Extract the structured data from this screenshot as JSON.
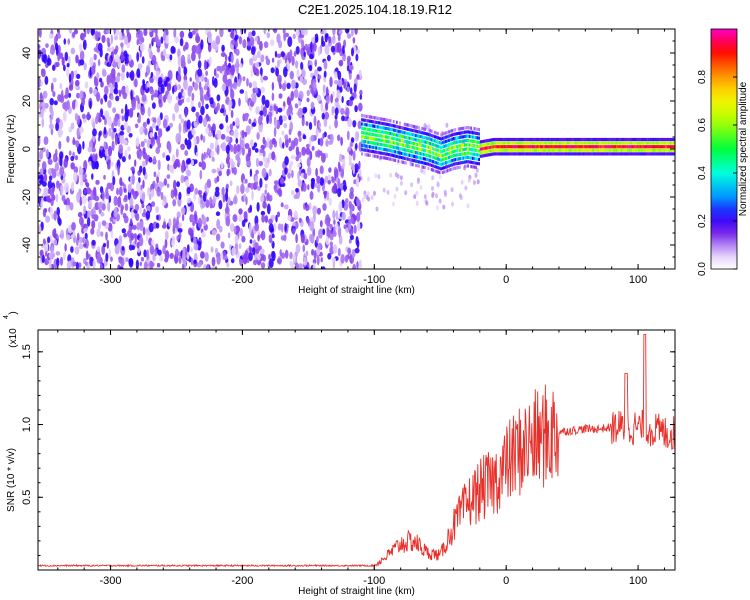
{
  "title": "C2E1.2025.104.18.19.R12",
  "chart_data": [
    {
      "type": "heatmap",
      "xlabel": "Height of straight line (km)",
      "ylabel": "Frequency (Hz)",
      "xlim": [
        -355,
        128
      ],
      "ylim": [
        -50,
        50
      ],
      "xticks": [
        -300,
        -200,
        -100,
        0,
        100
      ],
      "yticks": [
        -40,
        -20,
        0,
        20,
        40
      ],
      "noise_region_x": [
        -355,
        -110
      ],
      "signal_track": {
        "x": [
          -110,
          -90,
          -75,
          -60,
          -50,
          -40,
          -30,
          -20,
          -10,
          0,
          20,
          60,
          100,
          128
        ],
        "frequency": [
          6,
          4,
          2,
          0,
          -2,
          0,
          1,
          0,
          1,
          1,
          1,
          1,
          1,
          1
        ]
      },
      "colorbar": {
        "label": "Normalized spectral amplitude",
        "range": [
          0,
          1
        ],
        "ticks": [
          0.0,
          0.2,
          0.4,
          0.6,
          0.8
        ]
      }
    },
    {
      "type": "line",
      "xlabel": "Height of straight line (km)",
      "ylabel": "SNR (10 * v/v)",
      "multiplier_label": "(x10",
      "multiplier_exp": "4",
      "xlim": [
        -355,
        128
      ],
      "ylim": [
        0,
        1.65
      ],
      "xticks": [
        -300,
        -200,
        -100,
        0,
        100
      ],
      "yticks": [
        0.5,
        1.0,
        1.5
      ],
      "series": [
        {
          "color": "#e8302a",
          "x": [
            -355,
            -100,
            -90,
            -80,
            -70,
            -60,
            -50,
            -40,
            -30,
            -20,
            -10,
            0,
            10,
            20,
            30,
            40,
            50,
            60,
            70,
            80,
            90,
            100,
            110,
            120,
            128
          ],
          "y": [
            0.03,
            0.03,
            0.1,
            0.18,
            0.2,
            0.12,
            0.1,
            0.3,
            0.45,
            0.55,
            0.6,
            0.72,
            0.82,
            0.88,
            0.92,
            0.95,
            0.96,
            0.97,
            0.97,
            0.98,
            0.98,
            0.98,
            0.97,
            0.94,
            0.94
          ]
        }
      ]
    }
  ]
}
